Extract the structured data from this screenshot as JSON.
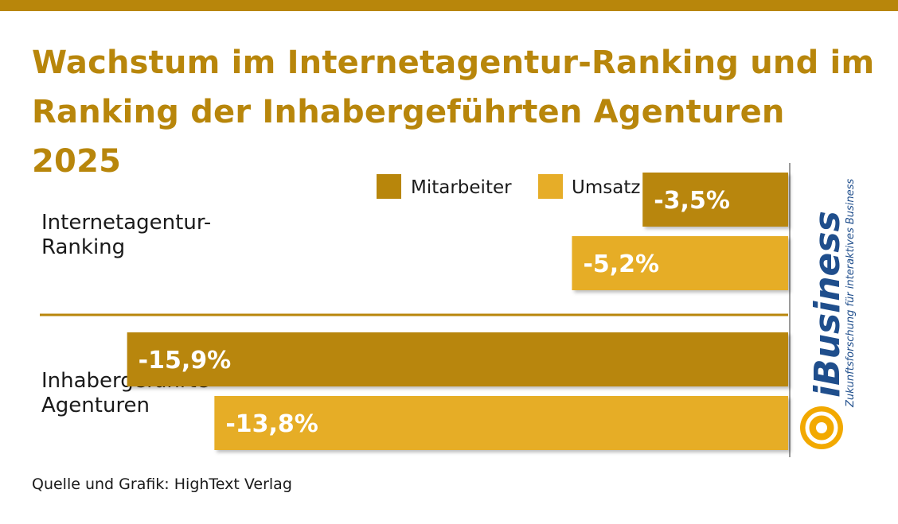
{
  "title_line1": "Wachstum im Internetagentur-Ranking und im",
  "title_line2": "Ranking der Inhabergeführten Agenturen 2025",
  "source": "Quelle und Grafik: HighText Verlag",
  "logo": {
    "brand": "iBusiness",
    "tagline": "Zukunftsforschung für interaktives Business"
  },
  "colors": {
    "accent": "#b8860b",
    "mitarbeiter": "#b8860b",
    "umsatz": "#e6ad28",
    "logo_orange": "#f2a900"
  },
  "chart_data": {
    "type": "bar",
    "orientation": "horizontal",
    "categories": [
      [
        "Internetagentur-",
        "Ranking"
      ],
      [
        "Inhabergeführte",
        "Agenturen"
      ]
    ],
    "series": [
      {
        "name": "Mitarbeiter",
        "values": [
          -3.5,
          -15.9
        ],
        "labels": [
          "-3,5%",
          "-15,9%"
        ]
      },
      {
        "name": "Umsatz",
        "values": [
          -5.2,
          -13.8
        ],
        "labels": [
          "-5,2%",
          "-13,8%"
        ]
      }
    ],
    "unit": "%",
    "xlim": [
      -18,
      0
    ],
    "legend": "top",
    "grid": false
  }
}
